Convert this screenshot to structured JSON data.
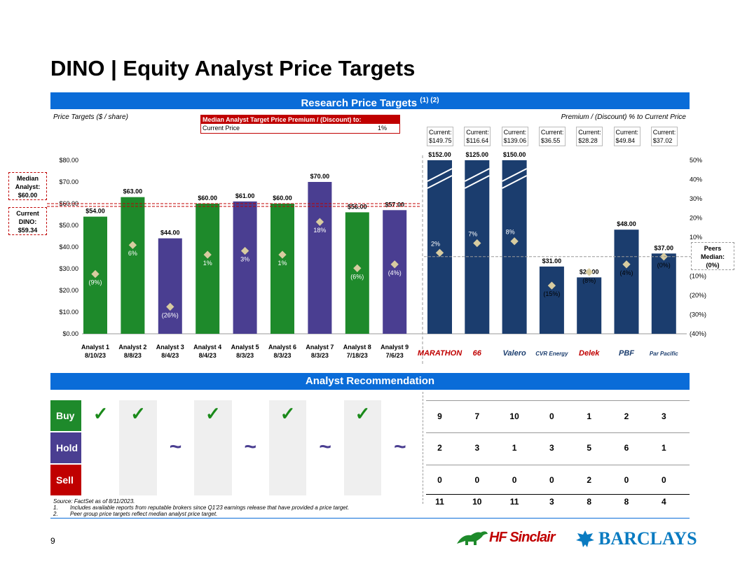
{
  "page": {
    "title": "DINO | Equity Analyst Price Targets",
    "banner_top": "Research Price Targets",
    "banner_top_sup": "(1) (2)",
    "left_caption": "Price Targets ($ / share)",
    "right_caption": "Premium / (Discount) % to Current Price",
    "banner_bottom": "Analyst Recommendation",
    "page_number": "9"
  },
  "median_box": {
    "header": "Median Analyst Target Price Premium / (Discount) to:",
    "row_label": "Current Price",
    "row_value": "1%"
  },
  "side_labels": {
    "median_analyst": [
      "Median",
      "Analyst:",
      "$60.00"
    ],
    "current_dino": [
      "Current",
      "DINO:",
      "$59.34"
    ],
    "peers_median": [
      "Peers",
      "Median:",
      "(0%)"
    ]
  },
  "peer_current": [
    "Current:\n$149.75",
    "Current:\n$116.64",
    "Current:\n$139.06",
    "Current:\n$36.55",
    "Current:\n$28.28",
    "Current:\n$49.84",
    "Current:\n$37.02"
  ],
  "peer_logos": [
    "MARATHON",
    "66",
    "Valero",
    "CVR Energy",
    "Delek",
    "PBF",
    "Par Pacific"
  ],
  "colors": {
    "green": "#1e8a2b",
    "purple": "#4a3e91",
    "navy": "#1b3d6e",
    "red": "#c00000",
    "blue_banner": "#0a6cd8",
    "diamond": "#d8cca0"
  },
  "chart_data": {
    "type": "bar",
    "left_axis": {
      "ticks": [
        "$0.00",
        "$10.00",
        "$20.00",
        "$30.00",
        "$40.00",
        "$50.00",
        "$60.00",
        "$70.00",
        "$80.00"
      ],
      "ylim": [
        0,
        80
      ]
    },
    "right_axis": {
      "ticks": [
        "(40%)",
        "(30%)",
        "(20%)",
        "(10%)",
        "0%",
        "10%",
        "20%",
        "30%",
        "40%",
        "50%"
      ],
      "ylim": [
        -40,
        50
      ]
    },
    "reference_lines": {
      "median_analyst": 60.0,
      "current_dino": 59.34,
      "peers_median_pct": 0
    },
    "analysts": [
      {
        "name": "Analyst 1",
        "date": "8/10/23",
        "target": 54.0,
        "label": "$54.00",
        "premium": -9,
        "premium_label": "(9%)",
        "rating": "Buy"
      },
      {
        "name": "Analyst 2",
        "date": "8/8/23",
        "target": 63.0,
        "label": "$63.00",
        "premium": 6,
        "premium_label": "6%",
        "rating": "Buy"
      },
      {
        "name": "Analyst 3",
        "date": "8/4/23",
        "target": 44.0,
        "label": "$44.00",
        "premium": -26,
        "premium_label": "(26%)",
        "rating": "Hold"
      },
      {
        "name": "Analyst 4",
        "date": "8/4/23",
        "target": 60.0,
        "label": "$60.00",
        "premium": 1,
        "premium_label": "1%",
        "rating": "Buy"
      },
      {
        "name": "Analyst 5",
        "date": "8/3/23",
        "target": 61.0,
        "label": "$61.00",
        "premium": 3,
        "premium_label": "3%",
        "rating": "Hold"
      },
      {
        "name": "Analyst 6",
        "date": "8/3/23",
        "target": 60.0,
        "label": "$60.00",
        "premium": 1,
        "premium_label": "1%",
        "rating": "Buy"
      },
      {
        "name": "Analyst 7",
        "date": "8/3/23",
        "target": 70.0,
        "label": "$70.00",
        "premium": 18,
        "premium_label": "18%",
        "rating": "Hold"
      },
      {
        "name": "Analyst 8",
        "date": "7/18/23",
        "target": 56.0,
        "label": "$56.00",
        "premium": -6,
        "premium_label": "(6%)",
        "rating": "Buy"
      },
      {
        "name": "Analyst 9",
        "date": "7/6/23",
        "target": 57.0,
        "label": "$57.00",
        "premium": -4,
        "premium_label": "(4%)",
        "rating": "Hold"
      }
    ],
    "peers": [
      {
        "target": 152.0,
        "label": "$152.00",
        "premium": 2,
        "premium_label": "2%",
        "truncated": true
      },
      {
        "target": 125.0,
        "label": "$125.00",
        "premium": 7,
        "premium_label": "7%",
        "truncated": true
      },
      {
        "target": 150.0,
        "label": "$150.00",
        "premium": 8,
        "premium_label": "8%",
        "truncated": true
      },
      {
        "target": 31.0,
        "label": "$31.00",
        "premium": -15,
        "premium_label": "(15%)",
        "truncated": false
      },
      {
        "target": 26.0,
        "label": "$26.00",
        "premium": -8,
        "premium_label": "(8%)",
        "truncated": false
      },
      {
        "target": 48.0,
        "label": "$48.00",
        "premium": -4,
        "premium_label": "(4%)",
        "truncated": false
      },
      {
        "target": 37.0,
        "label": "$37.00",
        "premium": 0,
        "premium_label": "(0%)",
        "truncated": false
      }
    ]
  },
  "recommendation": {
    "row_labels": [
      "Buy",
      "Hold",
      "Sell"
    ],
    "buy_mark": "✓",
    "hold_mark": "~",
    "peer_counts": {
      "buy": [
        "9",
        "7",
        "10",
        "0",
        "1",
        "2",
        "3"
      ],
      "hold": [
        "2",
        "3",
        "1",
        "3",
        "5",
        "6",
        "1"
      ],
      "sell": [
        "0",
        "0",
        "0",
        "0",
        "2",
        "0",
        "0"
      ],
      "total": [
        "11",
        "10",
        "11",
        "3",
        "8",
        "8",
        "4"
      ]
    }
  },
  "footnotes": {
    "source": "Source: FactSet as of 8/11/2023.",
    "note1_num": "1.",
    "note1": "Includes available reports from reputable brokers since Q1'23 earnings release that have provided a price target.",
    "note2_num": "2.",
    "note2": "Peer group price targets reflect median analyst price target."
  },
  "logos": {
    "hf": "HF Sinclair",
    "barclays": "BARCLAYS"
  }
}
